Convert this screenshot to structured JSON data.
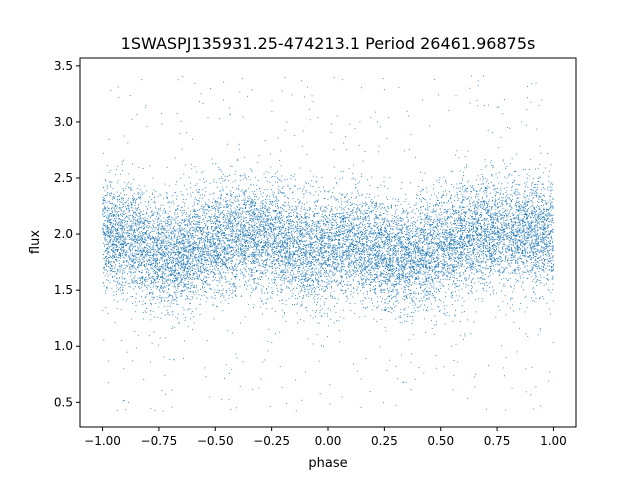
{
  "chart_data": {
    "type": "scatter",
    "title": "1SWASPJ135931.25-474213.1 Period 26461.96875s",
    "xlabel": "phase",
    "ylabel": "flux",
    "xlim": [
      -1.1,
      1.1
    ],
    "ylim": [
      0.28,
      3.57
    ],
    "xticks": [
      -1.0,
      -0.75,
      -0.5,
      -0.25,
      0.0,
      0.25,
      0.5,
      0.75,
      1.0
    ],
    "xtick_labels": [
      "−1.00",
      "−0.75",
      "−0.50",
      "−0.25",
      "0.00",
      "0.25",
      "0.50",
      "0.75",
      "1.00"
    ],
    "yticks": [
      0.5,
      1.0,
      1.5,
      2.0,
      2.5,
      3.0,
      3.5
    ],
    "ytick_labels": [
      "0.5",
      "1.0",
      "1.5",
      "2.0",
      "2.5",
      "3.0",
      "3.5"
    ],
    "grid": false,
    "point_color": "#1f77b4",
    "series": [
      {
        "phase_range": [
          -1.0,
          1.0
        ],
        "phase_step": 0.0625,
        "median_flux": [
          1.99,
          1.97,
          1.93,
          1.88,
          1.84,
          1.82,
          1.84,
          1.87,
          1.91,
          1.95,
          1.98,
          1.99,
          1.96,
          1.9,
          1.86,
          1.84,
          1.88,
          1.92,
          1.9,
          1.85,
          1.81,
          1.8,
          1.81,
          1.84,
          1.88,
          1.93,
          1.98,
          2.01,
          2.03,
          2.03,
          2.01,
          2.0,
          1.99
        ],
        "core_flux_range": [
          1.4,
          2.5
        ],
        "outlier_flux_range": [
          0.42,
          3.42
        ]
      }
    ]
  }
}
